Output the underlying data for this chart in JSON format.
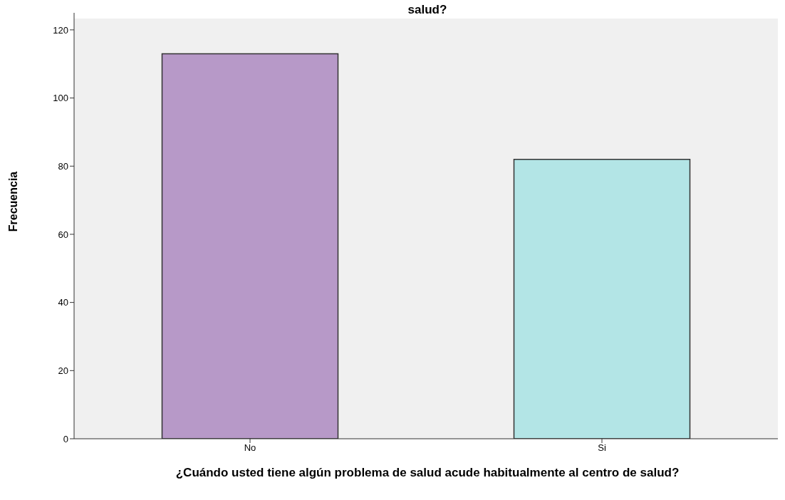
{
  "chart_data": {
    "type": "bar",
    "title": "salud?",
    "xlabel": "¿Cuándo usted tiene algún problema de salud acude habitualmente al centro de salud?",
    "ylabel": "Frecuencia",
    "categories": [
      "No",
      "Si"
    ],
    "values": [
      113,
      82
    ],
    "colors": [
      "#b799c8",
      "#b3e5e6"
    ],
    "ylim": [
      0,
      125
    ],
    "yticks": [
      0,
      20,
      40,
      60,
      80,
      100,
      120
    ],
    "grid": false
  }
}
